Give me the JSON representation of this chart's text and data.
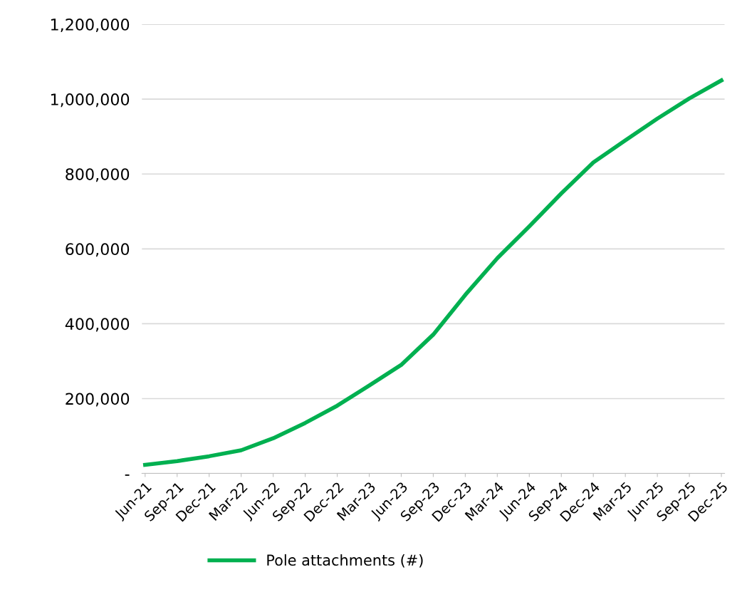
{
  "chart_data": {
    "type": "line",
    "categories": [
      "Jun-21",
      "Sep-21",
      "Dec-21",
      "Mar-22",
      "Jun-22",
      "Sep-22",
      "Dec-22",
      "Mar-23",
      "Jun-23",
      "Sep-23",
      "Dec-23",
      "Mar-24",
      "Jun-24",
      "Sep-24",
      "Dec-24",
      "Mar-25",
      "Jun-25",
      "Sep-25",
      "Dec-25"
    ],
    "series": [
      {
        "name": "Pole attachments (#)",
        "color": "#00b050",
        "values": [
          23000,
          33000,
          46000,
          62000,
          94000,
          135000,
          181000,
          235000,
          290000,
          371000,
          477000,
          575000,
          660000,
          748000,
          831000,
          890000,
          948000,
          1002000,
          1050000
        ]
      }
    ],
    "ylim": [
      0,
      1200000
    ],
    "yticks": [
      {
        "value": 0,
        "label": "-"
      },
      {
        "value": 200000,
        "label": "200,000"
      },
      {
        "value": 400000,
        "label": "400,000"
      },
      {
        "value": 600000,
        "label": "600,000"
      },
      {
        "value": 800000,
        "label": "800,000"
      },
      {
        "value": 1000000,
        "label": "1,000,000"
      },
      {
        "value": 1200000,
        "label": "1,200,000"
      }
    ],
    "grid": "y",
    "legend": "bottom",
    "marker": "none",
    "line_style": "solid"
  }
}
